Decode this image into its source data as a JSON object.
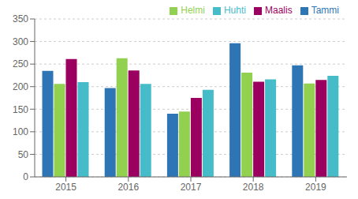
{
  "chart_data": {
    "type": "bar",
    "categories": [
      "2015",
      "2016",
      "2017",
      "2018",
      "2019"
    ],
    "series": [
      {
        "name": "Tammi",
        "color": "#2E75B6",
        "values": [
          235,
          197,
          140,
          296,
          247
        ]
      },
      {
        "name": "Helmi",
        "color": "#92D050",
        "values": [
          206,
          263,
          145,
          231,
          207
        ]
      },
      {
        "name": "Maalis",
        "color": "#9B0060",
        "values": [
          261,
          236,
          175,
          211,
          215
        ]
      },
      {
        "name": "Huhti",
        "color": "#45BCC8",
        "values": [
          210,
          206,
          193,
          216,
          224
        ]
      }
    ],
    "ylim": [
      0,
      350
    ],
    "yticks": [
      0,
      50,
      100,
      150,
      200,
      250,
      300,
      350
    ],
    "grid": true,
    "legend": "upper right"
  }
}
